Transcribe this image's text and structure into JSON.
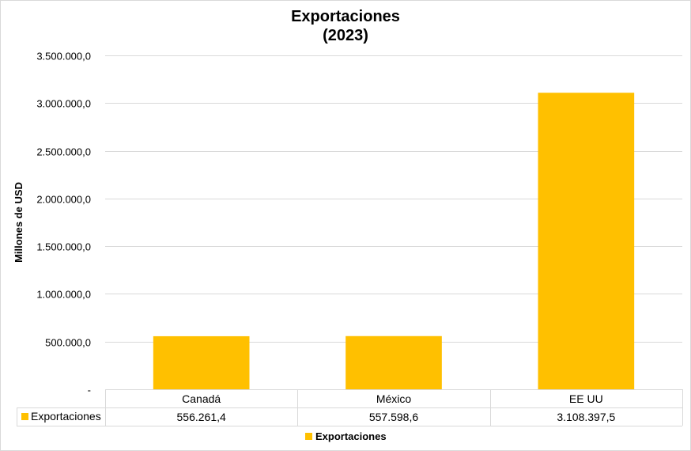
{
  "chart_data": {
    "type": "bar",
    "title": "Exportaciones",
    "subtitle": "(2023)",
    "ylabel": "Millones de USD",
    "xlabel": "",
    "categories": [
      "Canadá",
      "México",
      "EE UU"
    ],
    "series": [
      {
        "name": "Exportaciones",
        "values": [
          556261.4,
          557598.6,
          3108397.5
        ],
        "value_labels": [
          "556.261,4",
          "557.598,6",
          "3.108.397,5"
        ],
        "color": "#FFC000"
      }
    ],
    "ylim": [
      0,
      3500000
    ],
    "yticks": [
      0,
      500000,
      1000000,
      1500000,
      2000000,
      2500000,
      3000000,
      3500000
    ],
    "ytick_labels": [
      "-",
      "500.000,0",
      "1.000.000,0",
      "1.500.000,0",
      "2.000.000,0",
      "2.500.000,0",
      "3.000.000,0",
      "3.500.000,0"
    ],
    "grid": true,
    "data_table": true,
    "legend": {
      "position": "bottom",
      "label": "Exportaciones"
    }
  },
  "colors": {
    "bar": "#FFC000",
    "grid": "#d9d9d9",
    "table_border": "#d9d9d9"
  }
}
